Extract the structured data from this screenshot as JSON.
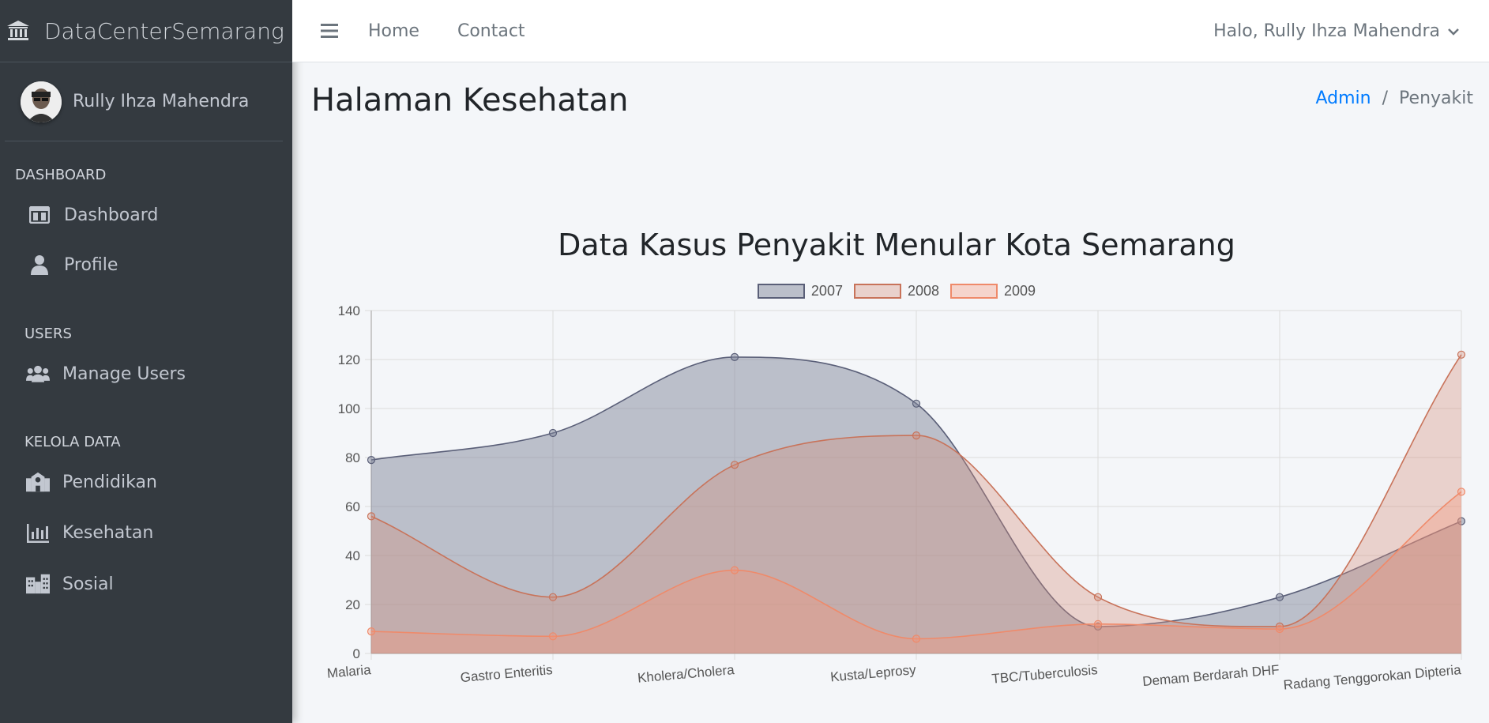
{
  "brand": {
    "name": "DataCenterSemarang"
  },
  "user": {
    "name": "Rully Ihza Mahendra"
  },
  "sidebar": {
    "sections": [
      {
        "header": "DASHBOARD",
        "items": [
          {
            "label": "Dashboard",
            "icon": "columns-icon"
          },
          {
            "label": "Profile",
            "icon": "user-icon"
          }
        ]
      },
      {
        "header": "USERS",
        "items": [
          {
            "label": "Manage Users",
            "icon": "users-icon"
          }
        ]
      },
      {
        "header": "KELOLA DATA",
        "items": [
          {
            "label": "Pendidikan",
            "icon": "school-icon"
          },
          {
            "label": "Kesehatan",
            "icon": "chart-bar-icon"
          },
          {
            "label": "Sosial",
            "icon": "city-icon"
          }
        ]
      }
    ]
  },
  "topnav": {
    "home": "Home",
    "contact": "Contact",
    "greeting": "Halo, Rully Ihza Mahendra"
  },
  "page": {
    "title": "Halaman Kesehatan"
  },
  "breadcrumb": {
    "parent": "Admin",
    "current": "Penyakit"
  },
  "colors": {
    "sidebar_bg": "#343a40",
    "link": "#007bff"
  },
  "chart_data": {
    "type": "area",
    "title": "Data Kasus Penyakit Menular Kota Semarang",
    "categories": [
      "Malaria",
      "Gastro Enteritis",
      "Kholera/Cholera",
      "Kusta/Leprosy",
      "TBC/Tuberculosis",
      "Demam Berdarah DHF",
      "Radang Tenggorokan Dipteria"
    ],
    "ylim": [
      0,
      140
    ],
    "yticks": [
      0,
      20,
      40,
      60,
      80,
      100,
      120,
      140
    ],
    "grid": true,
    "legend_position": "top",
    "series": [
      {
        "name": "2007",
        "values": [
          79,
          90,
          121,
          102,
          11,
          23,
          54
        ],
        "color": "#5a5f78",
        "fill": "rgba(130,135,155,0.5)"
      },
      {
        "name": "2008",
        "values": [
          56,
          23,
          77,
          89,
          23,
          11,
          122
        ],
        "color": "#c8735a",
        "fill": "rgba(212,140,120,0.35)"
      },
      {
        "name": "2009",
        "values": [
          9,
          7,
          34,
          6,
          12,
          10,
          66
        ],
        "color": "#ef8a6a",
        "fill": "rgba(245,150,120,0.35)"
      }
    ]
  }
}
